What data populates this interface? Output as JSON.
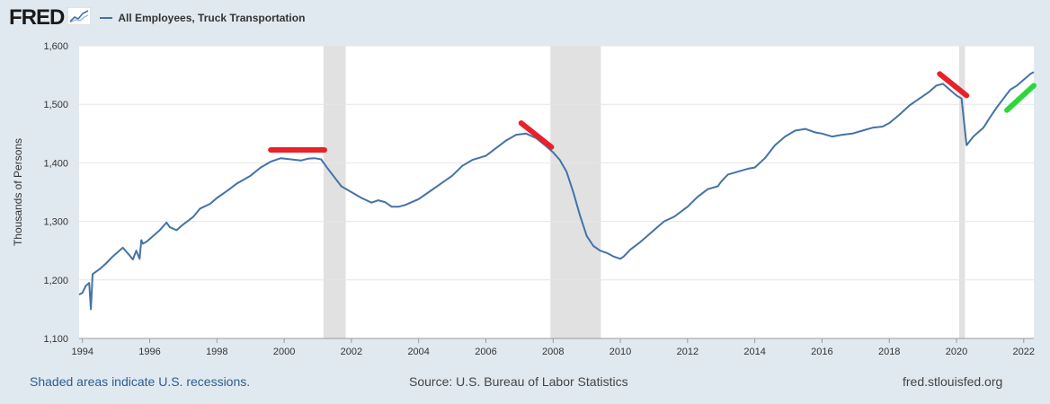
{
  "header": {
    "logo_text": "FRED",
    "series_title": "All Employees, Truck Transportation"
  },
  "footer": {
    "recession_note": "Shaded areas indicate U.S. recessions.",
    "source": "Source: U.S. Bureau of Labor Statistics",
    "site": "fred.stlouisfed.org"
  },
  "colors": {
    "series": "#4572a7",
    "recession": "#e1e1e1",
    "annotation_red": "#e8212a",
    "annotation_green": "#2ed63a",
    "background": "#e1e9f0",
    "plot_bg": "#ffffff",
    "grid": "#e6e6e6"
  },
  "icons": [
    "fred-chart-icon"
  ],
  "chart_data": {
    "type": "line",
    "title": "",
    "xlabel": "",
    "ylabel": "Thousands of Persons",
    "xlim": [
      1993.9,
      2022.3
    ],
    "ylim": [
      1100,
      1600
    ],
    "yticks": [
      1100,
      1200,
      1300,
      1400,
      1500,
      1600
    ],
    "ytick_labels": [
      "1,100",
      "1,200",
      "1,300",
      "1,400",
      "1,500",
      "1,600"
    ],
    "xticks": [
      1994,
      1996,
      1998,
      2000,
      2002,
      2004,
      2006,
      2008,
      2010,
      2012,
      2014,
      2016,
      2018,
      2020,
      2022
    ],
    "xtick_labels": [
      "1994",
      "1996",
      "1998",
      "2000",
      "2002",
      "2004",
      "2006",
      "2008",
      "2010",
      "2012",
      "2014",
      "2016",
      "2018",
      "2020",
      "2022"
    ],
    "grid": true,
    "legend_position": "top-left",
    "recessions": [
      [
        2001.17,
        2001.83
      ],
      [
        2007.92,
        2009.42
      ],
      [
        2020.08,
        2020.25
      ]
    ],
    "series": [
      {
        "name": "All Employees, Truck Transportation",
        "x": [
          1993.9,
          1994.0,
          1994.1,
          1994.2,
          1994.25,
          1994.3,
          1994.5,
          1994.7,
          1994.9,
          1995.0,
          1995.2,
          1995.4,
          1995.5,
          1995.6,
          1995.7,
          1995.75,
          1995.8,
          1995.9,
          1996.0,
          1996.3,
          1996.5,
          1996.6,
          1996.8,
          1997.0,
          1997.3,
          1997.5,
          1997.8,
          1998.0,
          1998.3,
          1998.6,
          1999.0,
          1999.3,
          1999.6,
          1999.9,
          2000.2,
          2000.5,
          2000.7,
          2000.9,
          2001.1,
          2001.3,
          2001.5,
          2001.7,
          2002.0,
          2002.3,
          2002.6,
          2002.8,
          2003.0,
          2003.2,
          2003.4,
          2003.6,
          2004.0,
          2004.3,
          2004.6,
          2005.0,
          2005.3,
          2005.6,
          2006.0,
          2006.3,
          2006.6,
          2006.9,
          2007.2,
          2007.5,
          2007.8,
          2008.0,
          2008.2,
          2008.4,
          2008.6,
          2008.8,
          2009.0,
          2009.2,
          2009.4,
          2009.6,
          2009.8,
          2010.0,
          2010.1,
          2010.3,
          2010.6,
          2011.0,
          2011.3,
          2011.6,
          2012.0,
          2012.3,
          2012.6,
          2012.9,
          2013.0,
          2013.2,
          2013.5,
          2013.8,
          2014.0,
          2014.3,
          2014.6,
          2014.9,
          2015.2,
          2015.5,
          2015.8,
          2016.0,
          2016.3,
          2016.6,
          2016.9,
          2017.2,
          2017.5,
          2017.8,
          2018.0,
          2018.3,
          2018.6,
          2018.9,
          2019.2,
          2019.4,
          2019.6,
          2019.8,
          2020.0,
          2020.15,
          2020.3,
          2020.5,
          2020.8,
          2021.0,
          2021.2,
          2021.4,
          2021.6,
          2021.8,
          2022.0,
          2022.2,
          2022.3
        ],
        "values": [
          1175,
          1178,
          1190,
          1195,
          1150,
          1210,
          1218,
          1228,
          1240,
          1245,
          1255,
          1242,
          1235,
          1250,
          1236,
          1268,
          1262,
          1265,
          1270,
          1285,
          1298,
          1290,
          1285,
          1295,
          1308,
          1322,
          1330,
          1340,
          1352,
          1365,
          1378,
          1392,
          1402,
          1408,
          1406,
          1404,
          1407,
          1408,
          1406,
          1390,
          1375,
          1360,
          1350,
          1340,
          1332,
          1336,
          1333,
          1325,
          1325,
          1328,
          1338,
          1350,
          1362,
          1378,
          1395,
          1405,
          1412,
          1425,
          1438,
          1448,
          1450,
          1442,
          1428,
          1418,
          1405,
          1385,
          1350,
          1310,
          1275,
          1258,
          1250,
          1246,
          1240,
          1236,
          1240,
          1252,
          1265,
          1285,
          1300,
          1308,
          1325,
          1342,
          1355,
          1360,
          1368,
          1380,
          1385,
          1390,
          1392,
          1408,
          1430,
          1445,
          1455,
          1458,
          1452,
          1450,
          1445,
          1448,
          1450,
          1455,
          1460,
          1462,
          1468,
          1482,
          1498,
          1510,
          1522,
          1532,
          1535,
          1525,
          1515,
          1510,
          1430,
          1445,
          1460,
          1478,
          1495,
          1510,
          1525,
          1532,
          1542,
          1552,
          1555
        ]
      }
    ]
  }
}
